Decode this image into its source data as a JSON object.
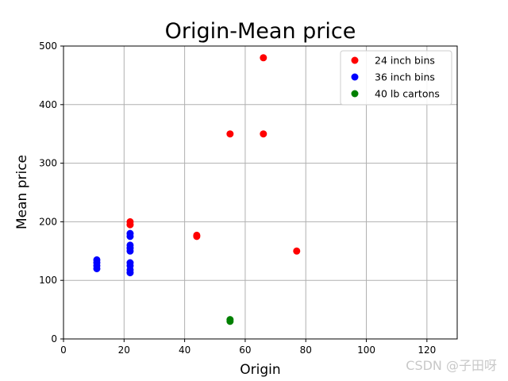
{
  "chart_data": {
    "type": "scatter",
    "title": "Origin-Mean price",
    "xlabel": "Origin",
    "ylabel": "Mean price",
    "xlim": [
      0,
      130
    ],
    "ylim": [
      0,
      500
    ],
    "xticks": [
      "0",
      "20",
      "40",
      "60",
      "80",
      "100",
      "120"
    ],
    "yticks": [
      "0",
      "100",
      "200",
      "300",
      "400",
      "500"
    ],
    "grid": true,
    "legend_position": "top-right",
    "series": [
      {
        "name": "24 inch bins",
        "color": "#ff0000",
        "points": [
          [
            22,
            200
          ],
          [
            22,
            195
          ],
          [
            44,
            175
          ],
          [
            44,
            177
          ],
          [
            55,
            350
          ],
          [
            66,
            480
          ],
          [
            66,
            350
          ],
          [
            77,
            150
          ]
        ]
      },
      {
        "name": "36 inch bins",
        "color": "#0000ff",
        "points": [
          [
            11,
            135
          ],
          [
            11,
            130
          ],
          [
            11,
            125
          ],
          [
            11,
            120
          ],
          [
            22,
            180
          ],
          [
            22,
            175
          ],
          [
            22,
            160
          ],
          [
            22,
            155
          ],
          [
            22,
            150
          ],
          [
            22,
            130
          ],
          [
            22,
            125
          ],
          [
            22,
            118
          ],
          [
            22,
            113
          ]
        ]
      },
      {
        "name": "40 lb cartons",
        "color": "#008000",
        "points": [
          [
            55,
            33
          ],
          [
            55,
            30
          ]
        ]
      }
    ]
  },
  "watermark": "CSDN @子田呀"
}
